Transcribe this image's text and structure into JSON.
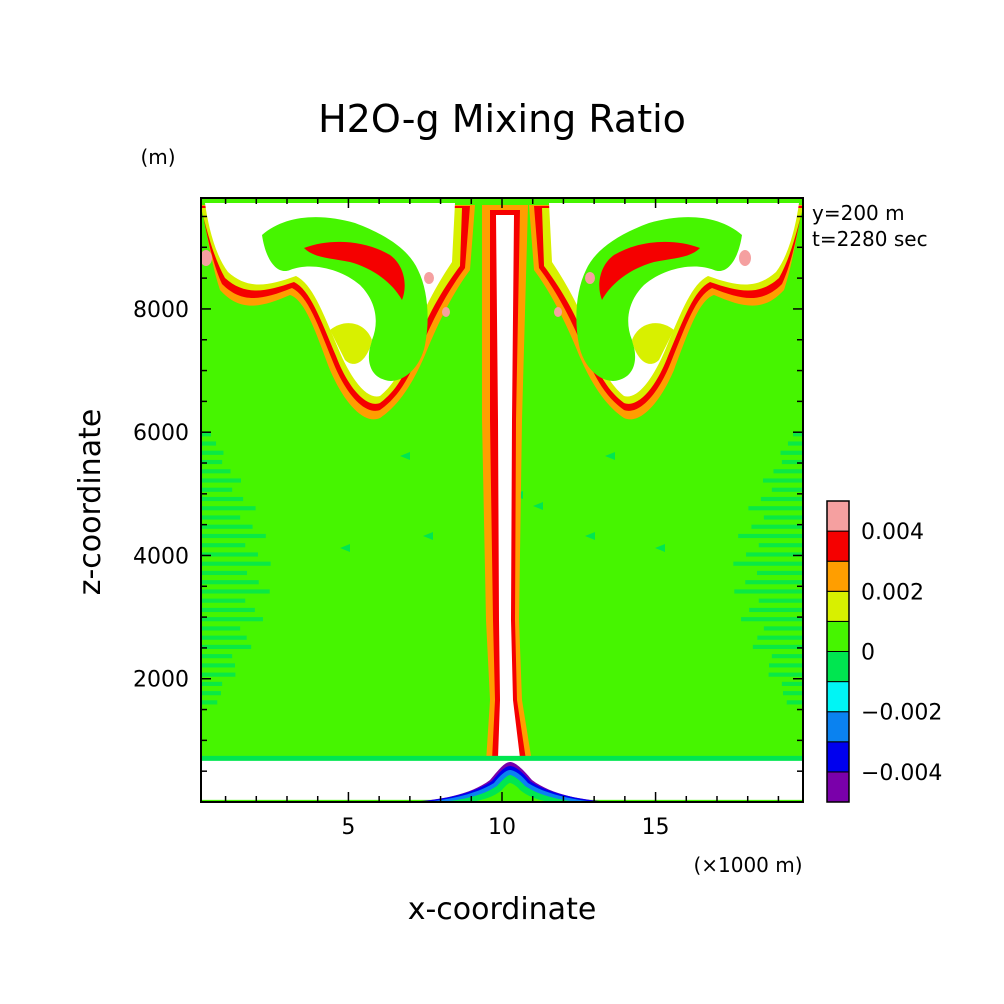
{
  "chart_data": {
    "type": "heatmap",
    "title": "H2O-g Mixing Ratio",
    "xlabel": "x-coordinate",
    "ylabel": "z-coordinate",
    "x_unit": "(×1000 m)",
    "y_unit": "(m)",
    "xlim": [
      0.2,
      19.8
    ],
    "ylim": [
      0,
      9800
    ],
    "x_ticks": [
      5,
      10,
      15
    ],
    "y_ticks": [
      2000,
      4000,
      6000,
      8000
    ],
    "annotations": [
      "y=200 m",
      "t=2280 sec"
    ],
    "colorbar": {
      "levels": [
        {
          "from": -0.005,
          "to": -0.004,
          "color": "#7a00aa"
        },
        {
          "from": -0.004,
          "to": -0.003,
          "color": "#0000ee"
        },
        {
          "from": -0.003,
          "to": -0.002,
          "color": "#0a82f0"
        },
        {
          "from": -0.002,
          "to": -0.001,
          "color": "#00f5f5"
        },
        {
          "from": -0.001,
          "to": 0.0,
          "color": "#00e650"
        },
        {
          "from": 0.0,
          "to": 0.001,
          "color": "#46f500"
        },
        {
          "from": 0.001,
          "to": 0.002,
          "color": "#d8f000"
        },
        {
          "from": 0.002,
          "to": 0.003,
          "color": "#ff9e00"
        },
        {
          "from": 0.003,
          "to": 0.004,
          "color": "#f50000"
        },
        {
          "from": 0.004,
          "to": 0.005,
          "color": "#f5a0a0"
        }
      ],
      "tick_values": [
        -0.004,
        -0.002,
        0,
        0.002,
        0.004
      ],
      "tick_labels": [
        "−0.004",
        "−0.002",
        "0",
        "0.002",
        "0.004"
      ]
    },
    "background_level": 0.0005,
    "regions": {
      "lower_layer_top": 700,
      "plume": {
        "center_x": 10.0,
        "half_width_km": [
          0.4,
          0.5
        ],
        "z_range": [
          700,
          9800
        ],
        "value": "above 0.005"
      },
      "near_surface_bulge": {
        "x_range": [
          7.0,
          13.2
        ],
        "z_top": 650
      },
      "cap_z_range": [
        6300,
        9800
      ],
      "striped_zone_z_range": [
        1500,
        6000
      ]
    }
  }
}
